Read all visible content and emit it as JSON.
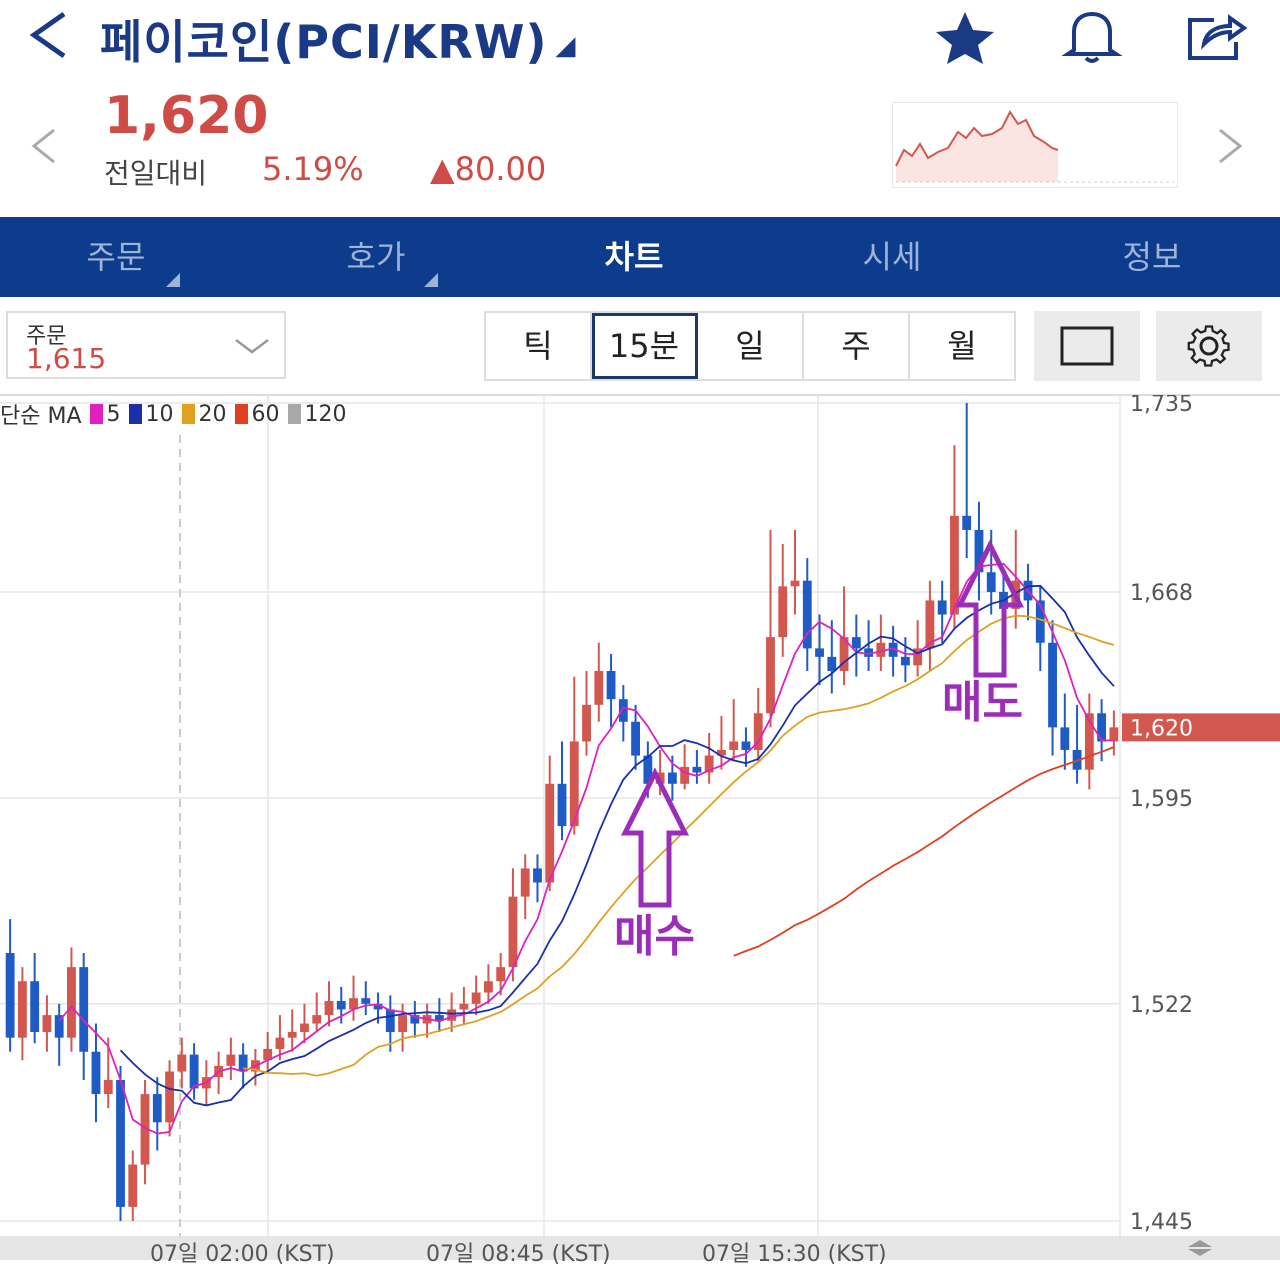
{
  "header": {
    "title": "페이코인(PCI/KRW)",
    "price": "1,620",
    "change_label": "전일대비",
    "change_pct": "5.19%",
    "change_abs": "▲80.00"
  },
  "tabs": [
    {
      "label": "주문"
    },
    {
      "label": "호가"
    },
    {
      "label": "차트"
    },
    {
      "label": "시세"
    },
    {
      "label": "정보"
    }
  ],
  "order_select": {
    "label": "주문",
    "value": "1,615"
  },
  "periods": [
    "틱",
    "15분",
    "일",
    "주",
    "월"
  ],
  "ma_legend": {
    "prefix": "단순 MA",
    "items": [
      {
        "label": "5",
        "color": "#e020c0"
      },
      {
        "label": "10",
        "color": "#1a2fa8"
      },
      {
        "label": "20",
        "color": "#e0a020"
      },
      {
        "label": "60",
        "color": "#e04020"
      },
      {
        "label": "120",
        "color": "#a8a8a8"
      }
    ]
  },
  "annotations": {
    "buy": "매수",
    "sell": "매도"
  },
  "chart_data": {
    "type": "candlestick",
    "y_ticks": [
      "1,735",
      "1,668",
      "1,595",
      "1,522",
      "1,445"
    ],
    "ylim": [
      1445,
      1735
    ],
    "x_ticks": [
      "07일 02:00 (KST)",
      "07일 08:45 (KST)",
      "07일 15:30 (KST)"
    ],
    "current_price": "1,620",
    "up_color": "#d2574f",
    "down_color": "#1f5bc4",
    "candles": [
      [
        1540,
        1510,
        1552,
        1505
      ],
      [
        1510,
        1530,
        1535,
        1502
      ],
      [
        1530,
        1512,
        1540,
        1508
      ],
      [
        1512,
        1518,
        1525,
        1505
      ],
      [
        1518,
        1510,
        1522,
        1500
      ],
      [
        1510,
        1535,
        1542,
        1505
      ],
      [
        1535,
        1505,
        1540,
        1495
      ],
      [
        1505,
        1490,
        1515,
        1480
      ],
      [
        1490,
        1495,
        1510,
        1485
      ],
      [
        1495,
        1450,
        1500,
        1445
      ],
      [
        1450,
        1465,
        1470,
        1445
      ],
      [
        1465,
        1490,
        1495,
        1458
      ],
      [
        1490,
        1480,
        1496,
        1470
      ],
      [
        1480,
        1498,
        1502,
        1475
      ],
      [
        1498,
        1504,
        1510,
        1492
      ],
      [
        1504,
        1492,
        1508,
        1488
      ],
      [
        1492,
        1496,
        1502,
        1486
      ],
      [
        1496,
        1500,
        1505,
        1490
      ],
      [
        1500,
        1504,
        1510,
        1495
      ],
      [
        1504,
        1498,
        1508,
        1492
      ],
      [
        1498,
        1502,
        1506,
        1493
      ],
      [
        1502,
        1506,
        1512,
        1498
      ],
      [
        1506,
        1510,
        1518,
        1502
      ],
      [
        1510,
        1512,
        1520,
        1505
      ],
      [
        1512,
        1515,
        1522,
        1508
      ],
      [
        1515,
        1518,
        1526,
        1512
      ],
      [
        1518,
        1523,
        1530,
        1514
      ],
      [
        1523,
        1520,
        1528,
        1515
      ],
      [
        1520,
        1524,
        1532,
        1516
      ],
      [
        1524,
        1522,
        1530,
        1518
      ],
      [
        1522,
        1520,
        1526,
        1515
      ],
      [
        1520,
        1512,
        1525,
        1505
      ],
      [
        1512,
        1518,
        1522,
        1505
      ],
      [
        1518,
        1515,
        1523,
        1510
      ],
      [
        1515,
        1518,
        1522,
        1510
      ],
      [
        1518,
        1516,
        1524,
        1512
      ],
      [
        1516,
        1520,
        1526,
        1512
      ],
      [
        1520,
        1522,
        1528,
        1515
      ],
      [
        1522,
        1526,
        1532,
        1518
      ],
      [
        1526,
        1530,
        1536,
        1522
      ],
      [
        1530,
        1535,
        1540,
        1525
      ],
      [
        1535,
        1560,
        1570,
        1530
      ],
      [
        1560,
        1570,
        1575,
        1552
      ],
      [
        1570,
        1565,
        1575,
        1558
      ],
      [
        1565,
        1600,
        1610,
        1562
      ],
      [
        1600,
        1585,
        1615,
        1580
      ],
      [
        1585,
        1615,
        1638,
        1582
      ],
      [
        1615,
        1628,
        1640,
        1610
      ],
      [
        1628,
        1640,
        1650,
        1622
      ],
      [
        1640,
        1630,
        1646,
        1620
      ],
      [
        1630,
        1622,
        1635,
        1615
      ],
      [
        1622,
        1610,
        1628,
        1605
      ],
      [
        1610,
        1600,
        1615,
        1595
      ],
      [
        1600,
        1604,
        1612,
        1596
      ],
      [
        1604,
        1600,
        1610,
        1594
      ],
      [
        1600,
        1606,
        1614,
        1598
      ],
      [
        1606,
        1604,
        1612,
        1600
      ],
      [
        1604,
        1610,
        1618,
        1600
      ],
      [
        1610,
        1612,
        1624,
        1605
      ],
      [
        1612,
        1615,
        1630,
        1608
      ],
      [
        1615,
        1612,
        1620,
        1606
      ],
      [
        1612,
        1625,
        1634,
        1608
      ],
      [
        1625,
        1652,
        1690,
        1620
      ],
      [
        1652,
        1670,
        1685,
        1645
      ],
      [
        1670,
        1672,
        1690,
        1660
      ],
      [
        1672,
        1648,
        1680,
        1640
      ],
      [
        1648,
        1645,
        1660,
        1635
      ],
      [
        1645,
        1640,
        1658,
        1632
      ],
      [
        1640,
        1652,
        1670,
        1635
      ],
      [
        1652,
        1648,
        1660,
        1638
      ],
      [
        1648,
        1645,
        1658,
        1640
      ],
      [
        1645,
        1650,
        1660,
        1640
      ],
      [
        1650,
        1645,
        1656,
        1638
      ],
      [
        1645,
        1642,
        1652,
        1636
      ],
      [
        1642,
        1648,
        1658,
        1638
      ],
      [
        1648,
        1665,
        1672,
        1640
      ],
      [
        1665,
        1660,
        1672,
        1650
      ],
      [
        1660,
        1695,
        1720,
        1655
      ],
      [
        1695,
        1690,
        1735,
        1680
      ],
      [
        1690,
        1675,
        1700,
        1665
      ],
      [
        1675,
        1668,
        1690,
        1660
      ],
      [
        1668,
        1662,
        1676,
        1650
      ],
      [
        1662,
        1672,
        1690,
        1655
      ],
      [
        1672,
        1665,
        1678,
        1658
      ],
      [
        1665,
        1650,
        1670,
        1640
      ],
      [
        1650,
        1620,
        1658,
        1610
      ],
      [
        1620,
        1612,
        1632,
        1605
      ],
      [
        1612,
        1605,
        1628,
        1600
      ],
      [
        1605,
        1625,
        1632,
        1598
      ],
      [
        1625,
        1615,
        1630,
        1608
      ],
      [
        1615,
        1620,
        1626,
        1610
      ]
    ]
  }
}
